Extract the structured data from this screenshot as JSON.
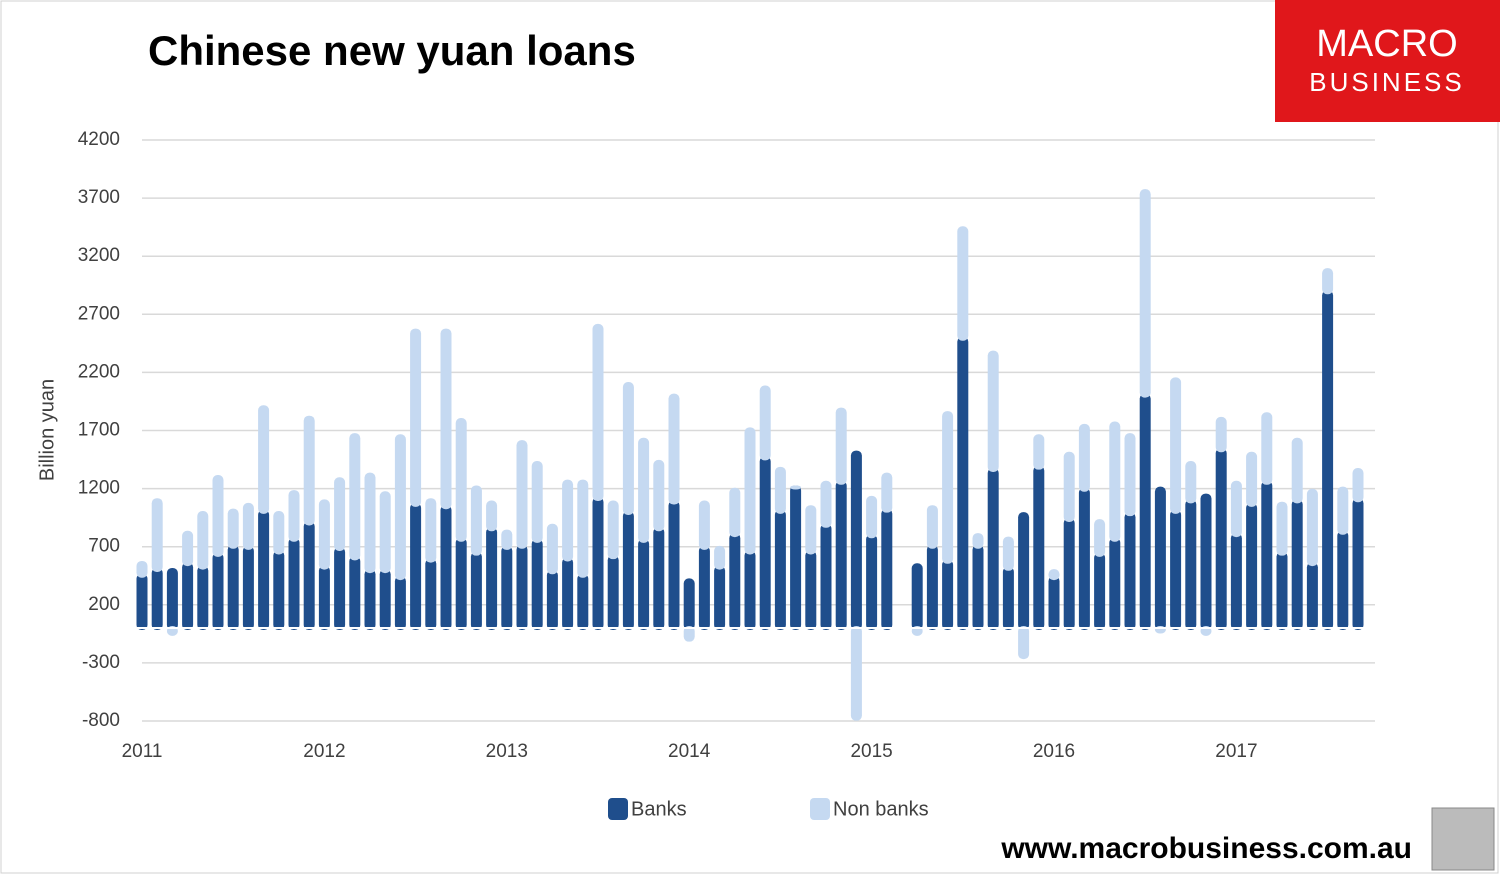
{
  "chart_data": {
    "type": "stacked_bar",
    "title": "Chinese new yuan loans",
    "y_label": "Billion yuan",
    "categories": [
      "2011",
      null,
      null,
      null,
      null,
      null,
      null,
      null,
      null,
      null,
      null,
      null,
      "2012",
      null,
      null,
      null,
      null,
      null,
      null,
      null,
      null,
      null,
      null,
      null,
      "2013",
      null,
      null,
      null,
      null,
      null,
      null,
      null,
      null,
      null,
      null,
      null,
      "2014",
      null,
      null,
      null,
      null,
      null,
      null,
      null,
      null,
      null,
      null,
      null,
      "2015",
      null,
      null,
      null,
      null,
      null,
      null,
      null,
      null,
      null,
      null,
      null,
      "2016",
      null,
      null,
      null,
      null,
      null,
      null,
      null,
      null,
      null,
      null,
      null,
      "2017",
      null,
      null,
      null,
      null,
      null,
      null,
      null,
      null
    ],
    "series": [
      {
        "name": "Banks",
        "color": "#1f4e8c",
        "values": [
          450,
          500,
          500,
          550,
          520,
          630,
          700,
          690,
          1000,
          650,
          760,
          900,
          520,
          680,
          600,
          490,
          490,
          430,
          1060,
          580,
          1040,
          760,
          640,
          850,
          690,
          700,
          750,
          480,
          590,
          450,
          1110,
          610,
          990,
          750,
          850,
          1080,
          410,
          690,
          520,
          800,
          650,
          1460,
          1000,
          1210,
          650,
          880,
          1250,
          1510,
          790,
          1010,
          null,
          540,
          700,
          570,
          2490,
          700,
          1360,
          510,
          980,
          1380,
          430,
          930,
          1190,
          630,
          760,
          980,
          2000,
          1200,
          1000,
          1090,
          1140,
          1530,
          800,
          1060,
          1250,
          640,
          1090,
          550,
          2890,
          820,
          1100
        ]
      },
      {
        "name": "Non banks",
        "color": "#c5d9f1",
        "values": [
          110,
          600,
          -50,
          270,
          470,
          670,
          310,
          370,
          900,
          340,
          410,
          910,
          570,
          600,
          1060,
          830,
          670,
          1220,
          1500,
          520,
          1520,
          1030,
          570,
          230,
          140,
          900,
          670,
          400,
          670,
          810,
          1490,
          470,
          1110,
          870,
          580,
          920,
          -100,
          390,
          170,
          390,
          1060,
          610,
          370,
          0,
          390,
          370,
          630,
          -780,
          330,
          310,
          null,
          -50,
          340,
          1280,
          950,
          100,
          1010,
          260,
          -250,
          270,
          60,
          570,
          550,
          290,
          1000,
          680,
          1760,
          -30,
          1140,
          330,
          -50,
          270,
          450,
          440,
          590,
          430,
          530,
          630,
          190,
          380,
          260
        ]
      }
    ],
    "ylim": [
      -800,
      4200
    ],
    "yticks": [
      -800,
      -300,
      200,
      700,
      1200,
      1700,
      2200,
      2700,
      3200,
      3700,
      4200
    ],
    "grid": true
  },
  "logo": {
    "line1": "MACRO",
    "line2": "BUSINESS"
  },
  "footer_url": "www.macrobusiness.com.au"
}
